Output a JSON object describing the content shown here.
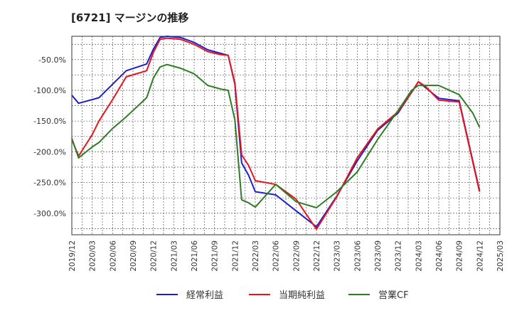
{
  "chart_data": {
    "type": "line",
    "title": "[6721]  マージンの推移",
    "xlabel": "",
    "ylabel": "",
    "ylim": [
      -335,
      -12
    ],
    "y_ticks": [
      -50,
      -100,
      -150,
      -200,
      -250,
      -300
    ],
    "y_tick_labels": [
      "-50.0%",
      "-100.0%",
      "-150.0%",
      "-200.0%",
      "-250.0%",
      "-300.0%"
    ],
    "x_tick_labels": [
      "2019/12",
      "2020/03",
      "2020/06",
      "2020/09",
      "2020/12",
      "2021/03",
      "2021/06",
      "2021/09",
      "2021/12",
      "2022/03",
      "2022/06",
      "2022/09",
      "2022/12",
      "2023/03",
      "2023/06",
      "2023/09",
      "2023/12",
      "2024/03",
      "2024/06",
      "2024/09",
      "2024/12",
      "2025/03"
    ],
    "grid": true,
    "legend_position": "bottom",
    "series": [
      {
        "name": "経常利益",
        "color": "#1f1fcf",
        "points": [
          [
            0,
            -108
          ],
          [
            0.33,
            -121
          ],
          [
            1,
            -115
          ],
          [
            1.33,
            -112
          ],
          [
            2,
            -90
          ],
          [
            2.67,
            -68
          ],
          [
            3.67,
            -57
          ],
          [
            4,
            -33
          ],
          [
            4.33,
            -14
          ],
          [
            4.67,
            -12
          ],
          [
            5.33,
            -14
          ],
          [
            6,
            -22
          ],
          [
            6.67,
            -34
          ],
          [
            7.33,
            -40
          ],
          [
            7.67,
            -43
          ],
          [
            8,
            -90
          ],
          [
            8.33,
            -218
          ],
          [
            8.67,
            -238
          ],
          [
            9,
            -265
          ],
          [
            10,
            -270
          ],
          [
            11,
            -296
          ],
          [
            12,
            -322
          ],
          [
            13,
            -272
          ],
          [
            14,
            -215
          ],
          [
            15,
            -165
          ],
          [
            16,
            -137
          ],
          [
            16.67,
            -103
          ],
          [
            17,
            -86
          ],
          [
            17.33,
            -95
          ],
          [
            18,
            -113
          ],
          [
            19,
            -117
          ],
          [
            20,
            -263
          ]
        ]
      },
      {
        "name": "当期純利益",
        "color": "#e8141c",
        "points": [
          [
            0,
            -180
          ],
          [
            0.33,
            -207
          ],
          [
            1,
            -172
          ],
          [
            1.33,
            -150
          ],
          [
            2,
            -115
          ],
          [
            2.67,
            -78
          ],
          [
            3.67,
            -68
          ],
          [
            4,
            -38
          ],
          [
            4.33,
            -17
          ],
          [
            4.67,
            -15
          ],
          [
            5.33,
            -17
          ],
          [
            6,
            -25
          ],
          [
            6.67,
            -37
          ],
          [
            7.33,
            -42
          ],
          [
            7.67,
            -43
          ],
          [
            8,
            -88
          ],
          [
            8.33,
            -205
          ],
          [
            8.67,
            -222
          ],
          [
            9,
            -247
          ],
          [
            10,
            -253
          ],
          [
            11,
            -277
          ],
          [
            12,
            -326
          ],
          [
            13,
            -273
          ],
          [
            14,
            -210
          ],
          [
            15,
            -163
          ],
          [
            16,
            -135
          ],
          [
            16.67,
            -103
          ],
          [
            17,
            -86
          ],
          [
            17.33,
            -93
          ],
          [
            18,
            -116
          ],
          [
            19,
            -119
          ],
          [
            20,
            -265
          ]
        ]
      },
      {
        "name": "営業CF",
        "color": "#2e7d24",
        "points": [
          [
            0,
            -178
          ],
          [
            0.33,
            -210
          ],
          [
            1,
            -192
          ],
          [
            1.33,
            -185
          ],
          [
            2,
            -162
          ],
          [
            2.67,
            -143
          ],
          [
            3.67,
            -112
          ],
          [
            4,
            -80
          ],
          [
            4.33,
            -62
          ],
          [
            4.67,
            -58
          ],
          [
            5.33,
            -64
          ],
          [
            6,
            -73
          ],
          [
            6.67,
            -92
          ],
          [
            7.33,
            -98
          ],
          [
            7.67,
            -100
          ],
          [
            8,
            -148
          ],
          [
            8.33,
            -278
          ],
          [
            8.67,
            -283
          ],
          [
            9,
            -290
          ],
          [
            10,
            -253
          ],
          [
            11,
            -281
          ],
          [
            12,
            -291
          ],
          [
            13,
            -265
          ],
          [
            14,
            -233
          ],
          [
            15,
            -180
          ],
          [
            16,
            -133
          ],
          [
            16.67,
            -100
          ],
          [
            17,
            -92
          ],
          [
            18,
            -92
          ],
          [
            19,
            -107
          ],
          [
            19.67,
            -137
          ],
          [
            20,
            -160
          ]
        ]
      }
    ]
  }
}
